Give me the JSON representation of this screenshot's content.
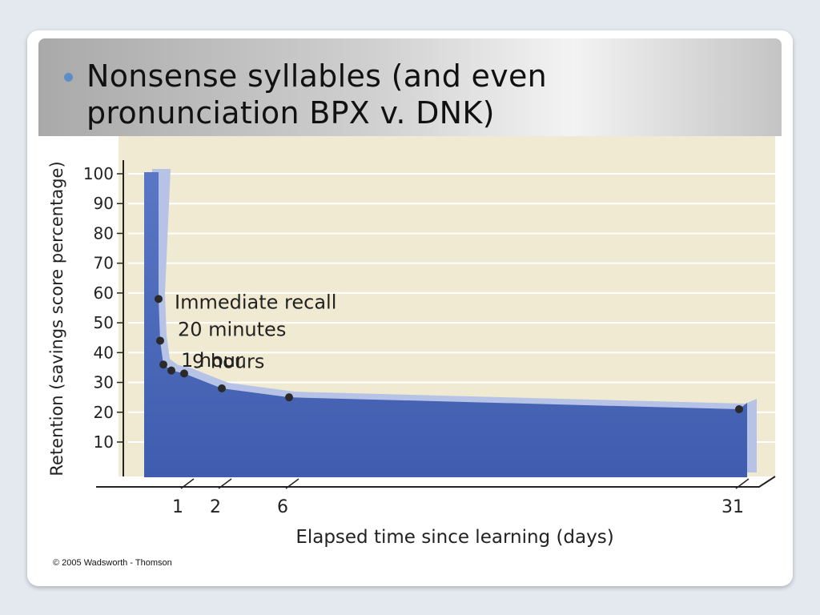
{
  "slide": {
    "bullet_text_line1": "Nonsense syllables (and even",
    "bullet_text_line2": "pronunciation  BPX v. DNK)",
    "copyright": "© 2005 Wadsworth - Thomson"
  },
  "colors": {
    "bullet": "#5b8ec9",
    "plot_background": "#f1ead2",
    "area_fill_top": "#5a76c4",
    "area_fill_bottom": "#3f5cae",
    "area_highlight": "#b7c3e6",
    "point": "#2a2a2a"
  },
  "chart_data": {
    "type": "area",
    "xlabel": "Elapsed time since learning (days)",
    "ylabel": "Retention (savings score percentage)",
    "ylim": [
      0,
      100
    ],
    "y_ticks": [
      10,
      20,
      30,
      40,
      50,
      60,
      70,
      80,
      90,
      100
    ],
    "x_ticks": [
      "1",
      "2",
      "6",
      "31"
    ],
    "grid": true,
    "series": [
      {
        "points": [
          {
            "x_days": 0.0,
            "y": 58
          },
          {
            "x_days": 0.014,
            "y": 44
          },
          {
            "x_days": 0.042,
            "y": 36
          },
          {
            "x_days": 0.375,
            "y": 34
          },
          {
            "x_days": 1,
            "y": 33
          },
          {
            "x_days": 2,
            "y": 28
          },
          {
            "x_days": 6,
            "y": 25
          },
          {
            "x_days": 31,
            "y": 21
          }
        ]
      }
    ],
    "annotations": [
      {
        "text": "Immediate recall",
        "point_index": 0
      },
      {
        "text": "20 minutes",
        "point_index": 1
      },
      {
        "text": "1 hour",
        "point_index": 2
      },
      {
        "text": "9 hours",
        "point_index": 3
      }
    ]
  }
}
